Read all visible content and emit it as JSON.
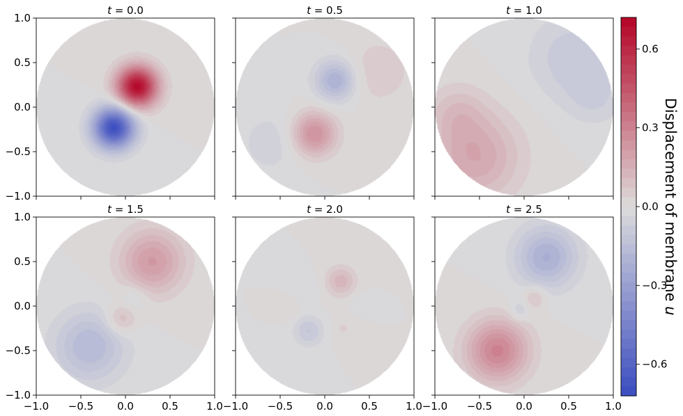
{
  "chart_data": {
    "type": "heatmap",
    "description_units": "membrane displacement on unit disk",
    "layout": "2 rows x 3 columns",
    "xlim": [
      -1.0,
      1.0
    ],
    "ylim": [
      -1.0,
      1.0
    ],
    "x_ticks": [
      -1.0,
      -0.5,
      0.0,
      0.5,
      1.0
    ],
    "y_ticks": [
      -1.0,
      -0.5,
      0.0,
      0.5,
      1.0
    ],
    "x_tick_labels": [
      "−1.0",
      "−0.5",
      "0.0",
      "0.5",
      "1.0"
    ],
    "y_tick_labels": [
      "−1.0",
      "−0.5",
      "0.0",
      "0.5",
      "1.0"
    ],
    "panels": [
      {
        "title_var": "t",
        "title_eq": " = 0.0",
        "blobs": [
          {
            "x": 0.13,
            "y": 0.23,
            "amp": 0.7,
            "sigma": 0.16
          },
          {
            "x": -0.13,
            "y": -0.23,
            "amp": -0.7,
            "sigma": 0.16
          }
        ]
      },
      {
        "title_var": "t",
        "title_eq": " = 0.5",
        "blobs": [
          {
            "x": 0.12,
            "y": 0.3,
            "amp": -0.22,
            "sigma": 0.16
          },
          {
            "x": -0.12,
            "y": -0.3,
            "amp": 0.26,
            "sigma": 0.17
          },
          {
            "x": 0.6,
            "y": 0.4,
            "amp": 0.07,
            "sigma": 0.25
          },
          {
            "x": -0.6,
            "y": -0.4,
            "amp": -0.06,
            "sigma": 0.25
          }
        ]
      },
      {
        "title_var": "t",
        "title_eq": " = 1.0",
        "blobs": [
          {
            "x": 0.55,
            "y": 0.55,
            "amp": -0.1,
            "sigma": 0.35
          },
          {
            "x": -0.55,
            "y": -0.55,
            "amp": 0.18,
            "sigma": 0.35
          },
          {
            "x": -0.75,
            "y": -0.05,
            "amp": 0.08,
            "sigma": 0.22
          },
          {
            "x": 0.8,
            "y": 0.1,
            "amp": -0.06,
            "sigma": 0.22
          }
        ]
      },
      {
        "title_var": "t",
        "title_eq": " = 1.5",
        "blobs": [
          {
            "x": 0.3,
            "y": 0.5,
            "amp": 0.22,
            "sigma": 0.25
          },
          {
            "x": -0.4,
            "y": -0.45,
            "amp": -0.18,
            "sigma": 0.28
          },
          {
            "x": -0.05,
            "y": -0.15,
            "amp": 0.12,
            "sigma": 0.12
          },
          {
            "x": 0.1,
            "y": 0.1,
            "amp": -0.06,
            "sigma": 0.11
          }
        ]
      },
      {
        "title_var": "t",
        "title_eq": " = 2.0",
        "blobs": [
          {
            "x": 0.18,
            "y": 0.28,
            "amp": 0.13,
            "sigma": 0.12
          },
          {
            "x": -0.18,
            "y": -0.28,
            "amp": -0.11,
            "sigma": 0.12
          },
          {
            "x": -0.2,
            "y": 0.22,
            "amp": -0.03,
            "sigma": 0.1
          },
          {
            "x": 0.2,
            "y": -0.25,
            "amp": 0.04,
            "sigma": 0.1
          },
          {
            "x": -0.4,
            "y": -0.05,
            "amp": 0.03,
            "sigma": 0.08
          },
          {
            "x": 0.4,
            "y": 0.05,
            "amp": -0.03,
            "sigma": 0.08
          }
        ]
      },
      {
        "title_var": "t",
        "title_eq": " = 2.5",
        "blobs": [
          {
            "x": 0.25,
            "y": 0.55,
            "amp": -0.22,
            "sigma": 0.24
          },
          {
            "x": -0.3,
            "y": -0.5,
            "amp": 0.3,
            "sigma": 0.24
          },
          {
            "x": 0.12,
            "y": 0.1,
            "amp": 0.1,
            "sigma": 0.09
          },
          {
            "x": -0.05,
            "y": -0.05,
            "amp": -0.08,
            "sigma": 0.08
          }
        ]
      }
    ],
    "colorbar": {
      "label_main": "Displacement of membrane ",
      "label_var": "u",
      "vmin": -0.72,
      "vmax": 0.72,
      "ticks": [
        -0.6,
        -0.3,
        0.0,
        0.3,
        0.6
      ],
      "tick_labels": [
        "−0.6",
        "−0.3",
        "0.0",
        "0.3",
        "0.6"
      ],
      "colormap": "coolwarm",
      "levels": 40
    },
    "colors": {
      "low": "#3b4cc0",
      "mid": "#dddcdc",
      "high": "#b40426"
    }
  }
}
